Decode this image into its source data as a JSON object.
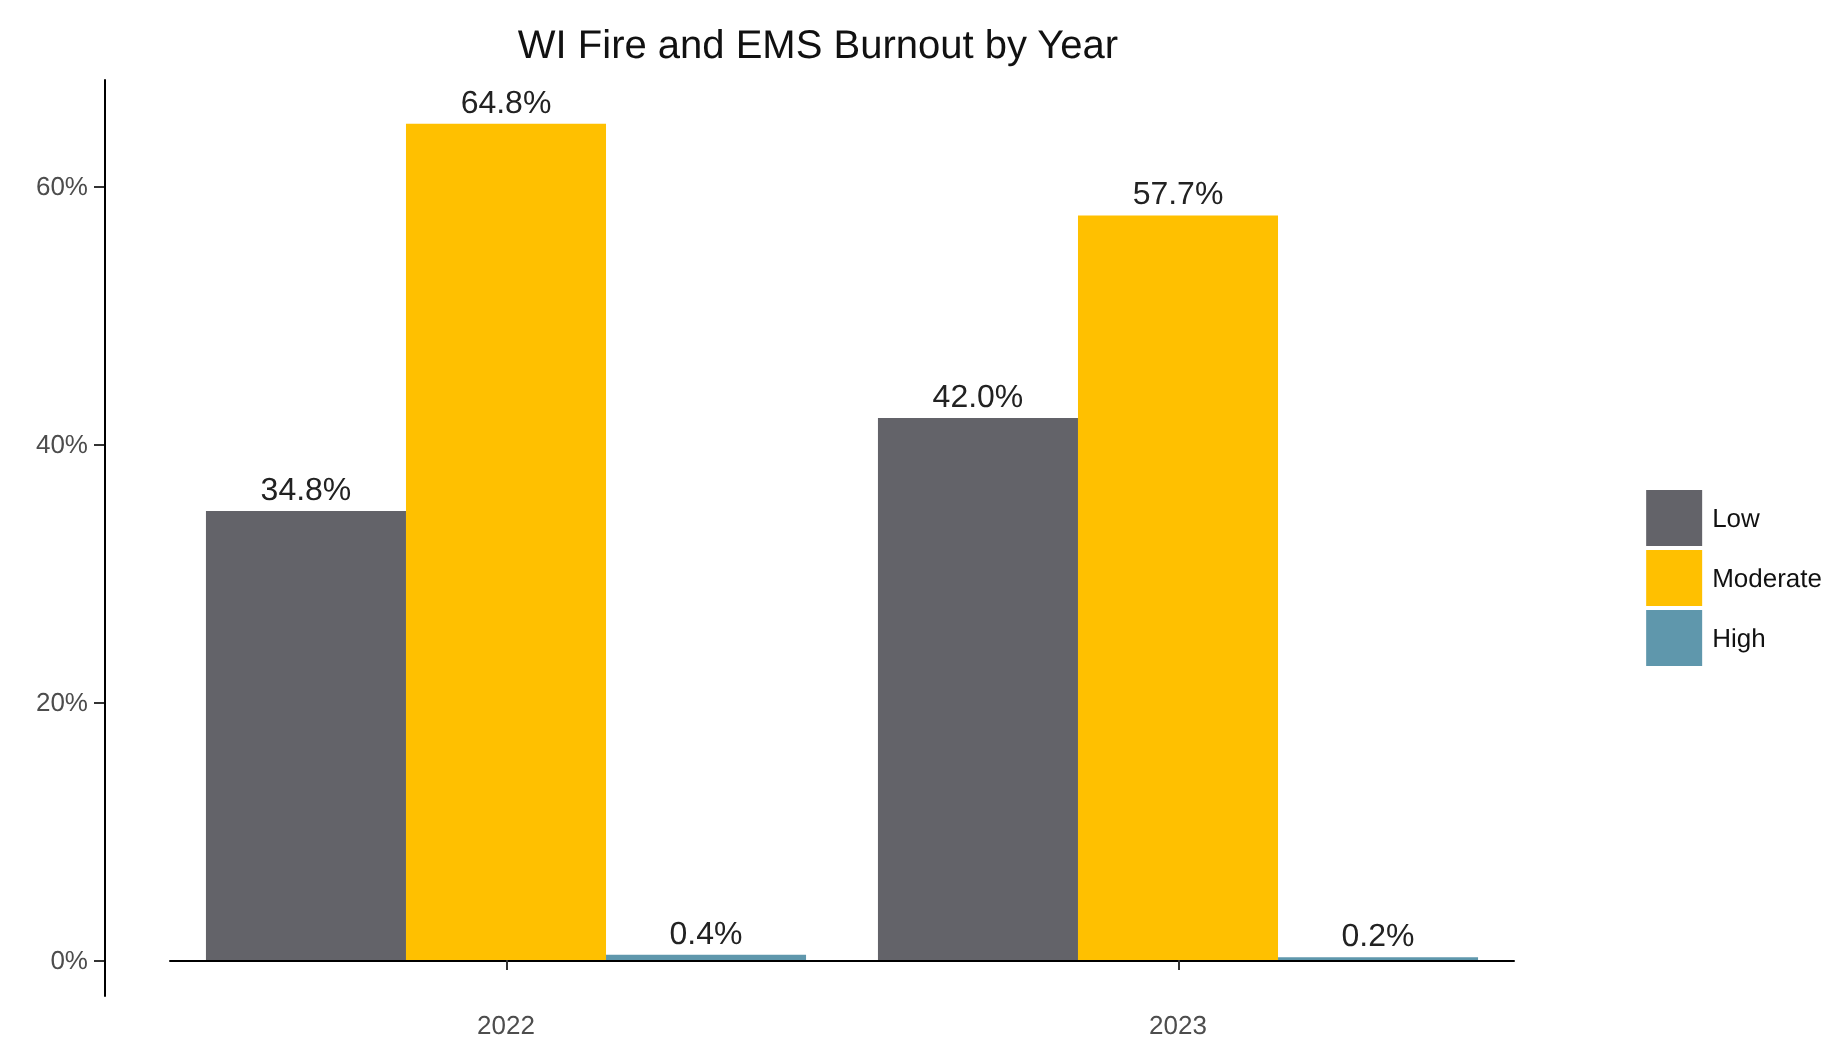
{
  "chart_data": {
    "type": "bar",
    "title": "WI Fire and EMS Burnout by Year",
    "categories": [
      "2022",
      "2023"
    ],
    "series": [
      {
        "name": "Low",
        "color": "#636369",
        "values": [
          34.8,
          42.0
        ],
        "value_labels": [
          "34.8%",
          "42.0%"
        ]
      },
      {
        "name": "Moderate",
        "color": "#ffc000",
        "values": [
          64.8,
          57.7
        ],
        "value_labels": [
          "64.8%",
          "57.7%"
        ]
      },
      {
        "name": "High",
        "color": "#5f97ac",
        "values": [
          0.4,
          0.2
        ],
        "value_labels": [
          "0.4%",
          "0.2%"
        ]
      }
    ],
    "ylim": [
      -2.8,
      68.2
    ],
    "yticks": [
      {
        "value": 0,
        "label": "0%"
      },
      {
        "value": 20,
        "label": "20%"
      },
      {
        "value": 40,
        "label": "40%"
      },
      {
        "value": 60,
        "label": "60%"
      }
    ],
    "grid": false,
    "legend": "right"
  }
}
